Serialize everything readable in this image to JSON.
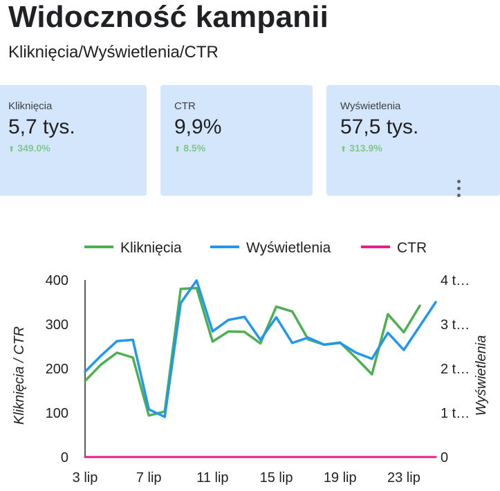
{
  "header": {
    "title": "Widoczność kampanii",
    "subtitle": "Kliknięcia/Wyświetlenia/CTR"
  },
  "scorecards": [
    {
      "label": "Kliknięcia",
      "value": "5,7 tys.",
      "change": "349.0%",
      "trend": "up"
    },
    {
      "label": "CTR",
      "value": "9,9%",
      "change": "8.5%",
      "trend": "up"
    },
    {
      "label": "Wyświetlenia",
      "value": "57,5 tys.",
      "change": "313.9%",
      "trend": "up"
    }
  ],
  "colors": {
    "card_bg": "#d4e6fb",
    "change_positive": "#7ec98a",
    "klikniecia": "#4caf50",
    "wyswietlenia": "#2196f3",
    "ctr": "#e91e8c"
  },
  "icons": {
    "menu": "more-vertical-icon",
    "trend": "arrow-up-icon"
  },
  "chart_data": {
    "type": "line",
    "legend_position": "top",
    "grid": false,
    "x_tick_labels": [
      "3 lip",
      "7 lip",
      "11 lip",
      "15 lip",
      "19 lip",
      "23 lip"
    ],
    "x": [
      "3 lip",
      "4 lip",
      "5 lip",
      "6 lip",
      "7 lip",
      "8 lip",
      "9 lip",
      "10 lip",
      "11 lip",
      "12 lip",
      "13 lip",
      "14 lip",
      "15 lip",
      "16 lip",
      "17 lip",
      "18 lip",
      "19 lip",
      "20 lip",
      "21 lip",
      "22 lip",
      "23 lip",
      "24 lip",
      "25 lip"
    ],
    "ylabel_left": "Kliknięcia / CTR",
    "ylabel_right": "Wyświetlenia",
    "ylim_left": [
      0,
      400
    ],
    "ylim_right": [
      0,
      4000
    ],
    "y_ticks_left": [
      "0",
      "100",
      "200",
      "300",
      "400"
    ],
    "y_ticks_right": [
      "0",
      "1 t…",
      "2 t…",
      "3 t…",
      "4 t…"
    ],
    "series": [
      {
        "name": "Kliknięcia",
        "axis": "left",
        "values": [
          172,
          209,
          236,
          225,
          94,
          103,
          380,
          382,
          261,
          284,
          283,
          257,
          340,
          329,
          266,
          254,
          259,
          224,
          187,
          323,
          282,
          342,
          null
        ]
      },
      {
        "name": "Wyświetlenia",
        "axis": "right",
        "values": [
          1930,
          2290,
          2620,
          2650,
          1080,
          910,
          3480,
          3990,
          2840,
          3100,
          3170,
          2650,
          3160,
          2580,
          2700,
          2540,
          2580,
          2360,
          2220,
          2810,
          2420,
          null,
          3500
        ]
      },
      {
        "name": "CTR",
        "axis": "left",
        "values": [
          0.09,
          0.09,
          0.09,
          0.09,
          0.09,
          0.09,
          0.11,
          0.1,
          0.09,
          0.09,
          0.09,
          0.1,
          0.11,
          0.13,
          0.1,
          0.1,
          0.1,
          0.09,
          0.08,
          0.11,
          0.12,
          0.1,
          0.1
        ]
      }
    ]
  }
}
